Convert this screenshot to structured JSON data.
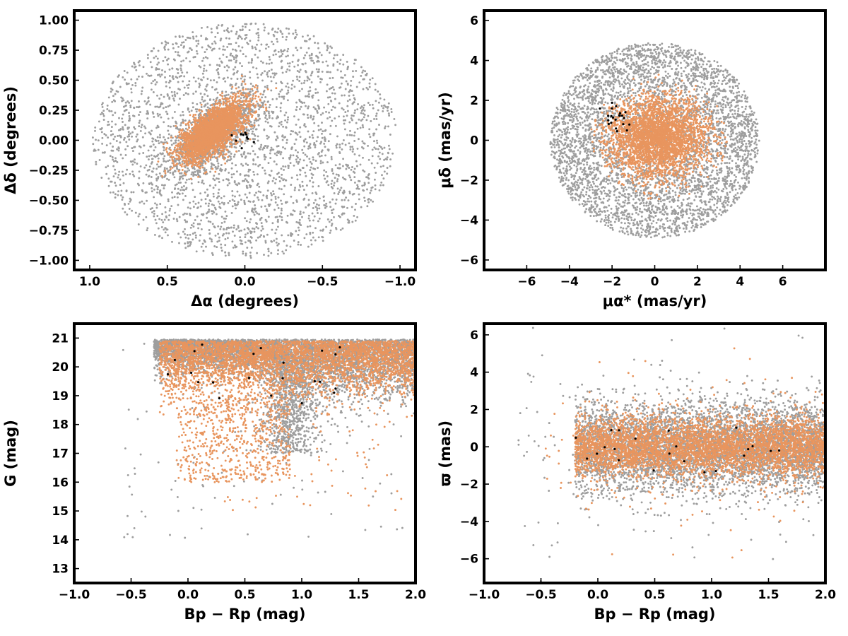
{
  "chart_data": [
    {
      "type": "scatter",
      "xlabel": "Δα (degrees)",
      "ylabel": "Δδ (degrees)",
      "xlim": [
        1.1,
        -1.1
      ],
      "ylim": [
        -1.08,
        1.08
      ],
      "x_ticks": [
        1.0,
        0.5,
        0.0,
        -0.5,
        -1.0
      ],
      "x_tick_labels": [
        "1.0",
        "0.5",
        "0.0",
        "−0.5",
        "−1.0"
      ],
      "y_ticks": [
        -1.0,
        -0.75,
        -0.5,
        -0.25,
        0.0,
        0.25,
        0.5,
        0.75,
        1.0
      ],
      "y_tick_labels": [
        "−1.00",
        "−0.75",
        "−0.50",
        "−0.25",
        "0.00",
        "0.25",
        "0.50",
        "0.75",
        "1.00"
      ],
      "series": [
        {
          "color": "#9e9e9e",
          "distribution": "uniform disc radius 1.0 plus dense field around the cluster"
        },
        {
          "color": "#e8955e",
          "distribution": "elongated cluster centred at Δα≈0.2, Δδ≈0.05"
        },
        {
          "color": "#000000",
          "distribution": "few points near Δα≈0.0, Δδ≈0.02"
        }
      ]
    },
    {
      "type": "scatter",
      "xlabel": "μα* (mas/yr)",
      "ylabel": "μδ (mas/yr)",
      "xlim": [
        -8,
        8
      ],
      "ylim": [
        -6.5,
        6.5
      ],
      "x_ticks": [
        -6,
        -4,
        -2,
        0,
        2,
        4,
        6
      ],
      "x_tick_labels": [
        "−6",
        "−4",
        "−2",
        "0",
        "2",
        "4",
        "6"
      ],
      "y_ticks": [
        -6,
        -4,
        -2,
        0,
        2,
        4,
        6
      ],
      "y_tick_labels": [
        "−6",
        "−4",
        "−2",
        "0",
        "2",
        "4",
        "6"
      ],
      "series": [
        {
          "color": "#9e9e9e",
          "distribution": "disc radius 5 centred at (0,0)"
        },
        {
          "color": "#e8955e",
          "distribution": "blob centred at (0.2,0.2), spread ~1.3"
        },
        {
          "color": "#000000",
          "distribution": "few points near (-1.8,1.2)"
        }
      ]
    },
    {
      "type": "scatter",
      "xlabel": "Bp − Rp (mag)",
      "ylabel": "G (mag)",
      "xlim": [
        -1.0,
        2.0
      ],
      "ylim": [
        12.5,
        21.5
      ],
      "x_ticks": [
        -1.0,
        -0.5,
        0.0,
        0.5,
        1.0,
        1.5,
        2.0
      ],
      "x_tick_labels": [
        "−1.0",
        "−0.5",
        "0.0",
        "0.5",
        "1.0",
        "1.5",
        "2.0"
      ],
      "y_ticks": [
        13,
        14,
        15,
        16,
        17,
        18,
        19,
        20,
        21
      ],
      "y_tick_labels": [
        "13",
        "14",
        "15",
        "16",
        "17",
        "18",
        "19",
        "20",
        "21"
      ],
      "series": [
        {
          "color": "#9e9e9e",
          "distribution": "dense band G 19–21 across colour, plume near colour 0.9 down to G≈17"
        },
        {
          "color": "#e8955e",
          "distribution": "dense band G 18.5–21, sparse blue tail to G≈16"
        },
        {
          "color": "#000000",
          "distribution": "few points scattered G 18–21"
        }
      ]
    },
    {
      "type": "scatter",
      "xlabel": "Bp − Rp (mag)",
      "ylabel": "ϖ (mas)",
      "xlim": [
        -1.0,
        2.0
      ],
      "ylim": [
        -7.3,
        6.6
      ],
      "x_ticks": [
        -1.0,
        -0.5,
        0.0,
        0.5,
        1.0,
        1.5,
        2.0
      ],
      "x_tick_labels": [
        "−1.0",
        "−0.5",
        "0.0",
        "0.5",
        "1.0",
        "1.5",
        "2.0"
      ],
      "y_ticks": [
        -6,
        -4,
        -2,
        0,
        2,
        4,
        6
      ],
      "y_tick_labels": [
        "−6",
        "−4",
        "−2",
        "0",
        "2",
        "4",
        "6"
      ],
      "series": [
        {
          "color": "#9e9e9e",
          "distribution": "band at parallax ≈ 0 with spread ~1.2"
        },
        {
          "color": "#e8955e",
          "distribution": "band at parallax ≈ 0 with spread ~0.8"
        },
        {
          "color": "#000000",
          "distribution": "few points near parallax 0"
        }
      ]
    }
  ]
}
